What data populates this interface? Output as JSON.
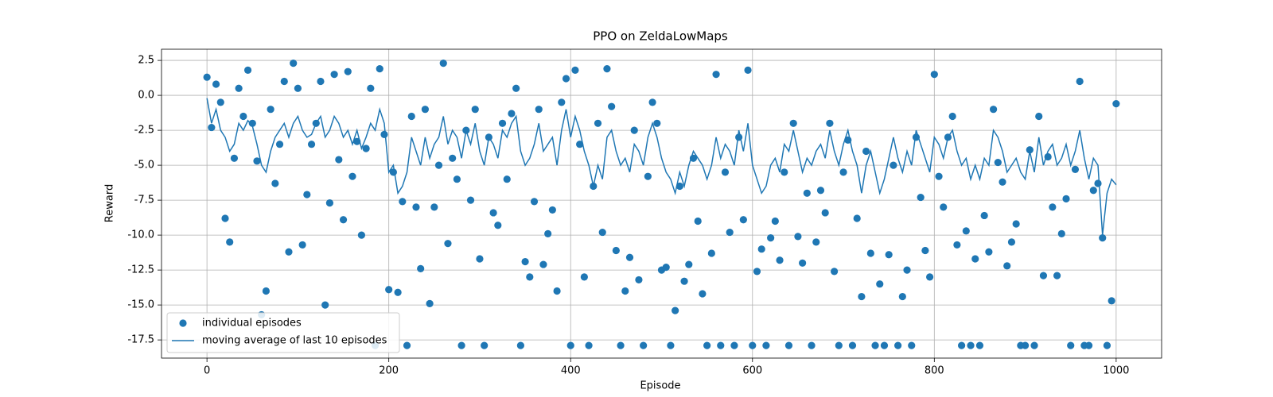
{
  "chart_data": {
    "type": "scatter",
    "title": "PPO on ZeldaLowMaps",
    "x_label": "Episode",
    "y_label": "Reward",
    "x": [
      0,
      5,
      10,
      15,
      20,
      25,
      30,
      35,
      40,
      45,
      50,
      55,
      60,
      65,
      70,
      75,
      80,
      85,
      90,
      95,
      100,
      105,
      110,
      115,
      120,
      125,
      130,
      135,
      140,
      145,
      150,
      155,
      160,
      165,
      170,
      175,
      180,
      185,
      190,
      195,
      200,
      205,
      210,
      215,
      220,
      225,
      230,
      235,
      240,
      245,
      250,
      255,
      260,
      265,
      270,
      275,
      280,
      285,
      290,
      295,
      300,
      305,
      310,
      315,
      320,
      325,
      330,
      335,
      340,
      345,
      350,
      355,
      360,
      365,
      370,
      375,
      380,
      385,
      390,
      395,
      400,
      405,
      410,
      415,
      420,
      425,
      430,
      435,
      440,
      445,
      450,
      455,
      460,
      465,
      470,
      475,
      480,
      485,
      490,
      495,
      500,
      505,
      510,
      515,
      520,
      525,
      530,
      535,
      540,
      545,
      550,
      555,
      560,
      565,
      570,
      575,
      580,
      585,
      590,
      595,
      600,
      605,
      610,
      615,
      620,
      625,
      630,
      635,
      640,
      645,
      650,
      655,
      660,
      665,
      670,
      675,
      680,
      685,
      690,
      695,
      700,
      705,
      710,
      715,
      720,
      725,
      730,
      735,
      740,
      745,
      750,
      755,
      760,
      765,
      770,
      775,
      780,
      785,
      790,
      795,
      800,
      805,
      810,
      815,
      820,
      825,
      830,
      835,
      840,
      845,
      850,
      855,
      860,
      865,
      870,
      875,
      880,
      885,
      890,
      895,
      900,
      905,
      910,
      915,
      920,
      925,
      930,
      935,
      940,
      945,
      950,
      955,
      960,
      965,
      970,
      975,
      980,
      985,
      990,
      995,
      1000
    ],
    "series": [
      {
        "name": "individual episodes",
        "mark": "point",
        "color": "#1f77b4",
        "values": [
          1.3,
          -2.3,
          0.8,
          -0.5,
          -8.8,
          -10.5,
          -4.5,
          0.5,
          -1.5,
          1.8,
          -2.0,
          -4.7,
          -15.7,
          -14.0,
          -1.0,
          -6.3,
          -3.5,
          1.0,
          -11.2,
          2.3,
          0.5,
          -10.7,
          -7.1,
          -3.5,
          -2.0,
          1.0,
          -15.0,
          -7.7,
          1.5,
          -4.6,
          -8.9,
          1.7,
          -5.8,
          -3.3,
          -10.0,
          -3.8,
          0.5,
          -17.9,
          1.9,
          -2.8,
          -13.9,
          -5.5,
          -14.1,
          -7.6,
          -17.9,
          -1.5,
          -8.0,
          -12.4,
          -1.0,
          -14.9,
          -8.0,
          -5.0,
          2.3,
          -10.6,
          -4.5,
          -6.0,
          -17.9,
          -2.5,
          -7.5,
          -1.0,
          -11.7,
          -17.9,
          -3.0,
          -8.4,
          -9.3,
          -2.0,
          -6.0,
          -1.3,
          0.5,
          -17.9,
          -11.9,
          -13.0,
          -7.6,
          -1.0,
          -12.1,
          -9.9,
          -8.2,
          -14.0,
          -0.5,
          1.2,
          -17.9,
          1.8,
          -3.5,
          -13.0,
          -17.9,
          -6.5,
          -2.0,
          -9.8,
          1.9,
          -0.8,
          -11.1,
          -17.9,
          -14.0,
          -11.6,
          -2.5,
          -13.2,
          -17.9,
          -5.8,
          -0.5,
          -2.0,
          -12.5,
          -12.3,
          -17.9,
          -15.4,
          -6.5,
          -13.3,
          -12.1,
          -4.5,
          -9.0,
          -14.2,
          -17.9,
          -11.3,
          1.5,
          -17.9,
          -5.5,
          -9.8,
          -17.9,
          -3.0,
          -8.9,
          1.8,
          -17.9,
          -12.6,
          -11.0,
          -17.9,
          -10.2,
          -9.0,
          -11.8,
          -5.5,
          -17.9,
          -2.0,
          -10.1,
          -12.0,
          -7.0,
          -17.9,
          -10.5,
          -6.8,
          -8.4,
          -2.0,
          -12.6,
          -17.9,
          -5.5,
          -3.2,
          -17.9,
          -8.8,
          -14.4,
          -4.0,
          -11.3,
          -17.9,
          -13.5,
          -17.9,
          -11.4,
          -5.0,
          -17.9,
          -14.4,
          -12.5,
          -17.9,
          -3.0,
          -7.3,
          -11.1,
          -13.0,
          1.5,
          -5.8,
          -8.0,
          -3.0,
          -1.5,
          -10.7,
          -17.9,
          -9.7,
          -17.9,
          -11.7,
          -17.9,
          -8.6,
          -11.2,
          -1.0,
          -4.8,
          -6.2,
          -12.2,
          -10.5,
          -9.2,
          -17.9,
          -17.9,
          -3.9,
          -17.9,
          -1.5,
          -12.9,
          -4.4,
          -8.0,
          -12.9,
          -9.9,
          -7.4,
          -17.9,
          -5.3,
          1.0,
          -17.9,
          -17.9,
          -6.8,
          -6.3,
          -10.2,
          -17.9,
          -14.7,
          -0.6
        ]
      },
      {
        "name": "moving average of last 10 episodes",
        "mark": "line",
        "color": "#1f77b4",
        "values": [
          -0.2,
          -2.0,
          -1.0,
          -2.5,
          -3.0,
          -4.0,
          -3.5,
          -2.0,
          -2.5,
          -1.8,
          -2.2,
          -3.5,
          -5.0,
          -5.5,
          -4.0,
          -3.0,
          -2.5,
          -2.0,
          -3.0,
          -2.0,
          -1.5,
          -2.5,
          -3.0,
          -2.8,
          -2.0,
          -1.5,
          -3.0,
          -2.5,
          -1.5,
          -2.0,
          -3.0,
          -2.5,
          -3.5,
          -2.5,
          -3.8,
          -3.0,
          -2.0,
          -2.5,
          -1.0,
          -2.0,
          -5.5,
          -5.0,
          -7.0,
          -6.5,
          -5.5,
          -3.0,
          -4.0,
          -5.0,
          -3.0,
          -4.5,
          -3.5,
          -3.0,
          -1.5,
          -3.5,
          -2.5,
          -3.0,
          -4.5,
          -2.5,
          -3.5,
          -2.0,
          -4.0,
          -5.0,
          -3.0,
          -3.5,
          -4.5,
          -2.5,
          -3.0,
          -2.0,
          -1.5,
          -4.0,
          -5.0,
          -4.5,
          -3.5,
          -2.0,
          -4.0,
          -3.5,
          -3.0,
          -5.0,
          -2.5,
          -1.0,
          -3.0,
          -1.5,
          -2.5,
          -4.0,
          -5.0,
          -6.5,
          -5.0,
          -6.0,
          -3.0,
          -2.5,
          -4.0,
          -5.0,
          -4.5,
          -5.5,
          -3.5,
          -4.0,
          -5.0,
          -3.0,
          -2.0,
          -3.0,
          -4.5,
          -5.5,
          -6.0,
          -7.0,
          -5.5,
          -6.5,
          -5.0,
          -4.0,
          -4.5,
          -5.0,
          -6.0,
          -5.0,
          -3.0,
          -4.5,
          -3.5,
          -4.0,
          -5.0,
          -2.5,
          -4.0,
          -2.0,
          -5.0,
          -6.0,
          -7.0,
          -6.5,
          -5.0,
          -4.5,
          -5.5,
          -3.5,
          -4.0,
          -2.5,
          -4.0,
          -5.5,
          -4.5,
          -5.0,
          -4.0,
          -3.5,
          -4.5,
          -2.5,
          -4.0,
          -5.0,
          -3.5,
          -2.5,
          -4.0,
          -5.0,
          -7.0,
          -5.0,
          -4.0,
          -5.5,
          -7.0,
          -6.0,
          -4.5,
          -3.0,
          -4.5,
          -5.5,
          -4.0,
          -5.0,
          -2.5,
          -3.5,
          -4.5,
          -5.5,
          -3.0,
          -3.5,
          -4.5,
          -3.0,
          -2.5,
          -4.0,
          -5.0,
          -4.5,
          -6.0,
          -5.0,
          -6.0,
          -4.5,
          -5.0,
          -2.5,
          -3.0,
          -4.0,
          -5.5,
          -5.0,
          -4.5,
          -5.5,
          -6.0,
          -4.0,
          -5.5,
          -3.0,
          -5.0,
          -4.0,
          -3.5,
          -5.0,
          -4.5,
          -3.5,
          -5.0,
          -4.0,
          -2.5,
          -4.5,
          -6.0,
          -4.5,
          -5.0,
          -10.0,
          -7.0,
          -6.0,
          -6.4
        ]
      }
    ],
    "xlim": [
      -50,
      1050
    ],
    "ylim": [
      -18.8,
      3.3
    ],
    "xticks": [
      0,
      200,
      400,
      600,
      800,
      1000
    ],
    "yticks": [
      2.5,
      {
        "value": 0,
        "label": "0.0"
      },
      -2.5,
      {
        "value": -5,
        "label": "-5.0"
      },
      -7.5,
      {
        "value": -10,
        "label": "-10.0"
      },
      -12.5,
      {
        "value": -15,
        "label": "-15.0"
      },
      -17.5
    ],
    "grid": true,
    "legend": "lower left"
  }
}
